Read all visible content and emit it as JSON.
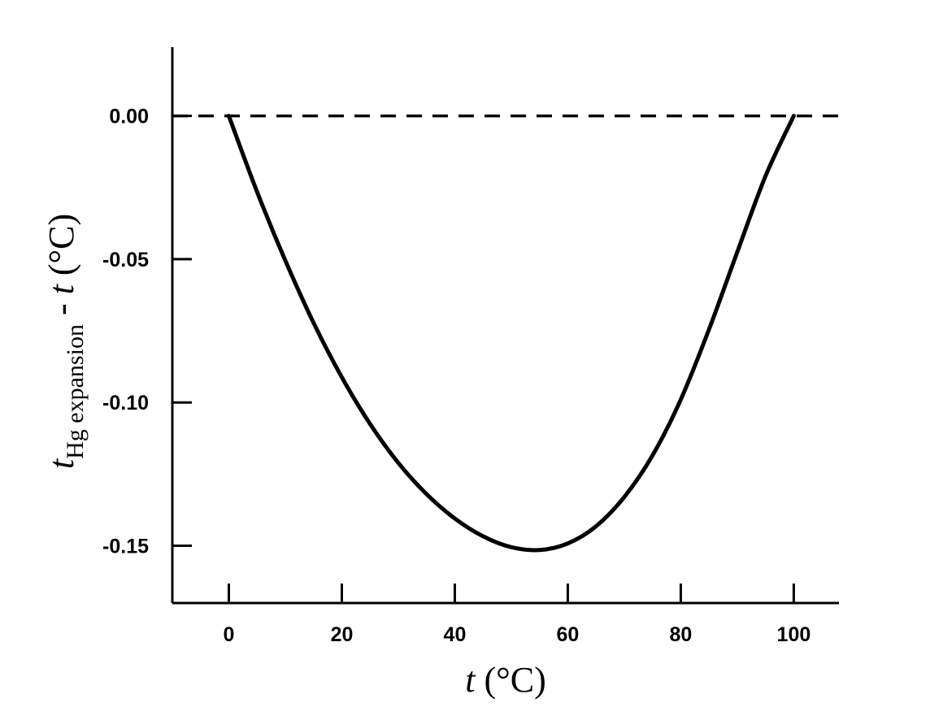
{
  "chart_data": {
    "type": "line",
    "title": "",
    "xlabel": {
      "variable": "t",
      "unit": " (°C)"
    },
    "ylabel": {
      "variable": "t",
      "subscript": "Hg expansion",
      "middle": " - ",
      "variable2": "t",
      "unit": " (°C)"
    },
    "xlim": [
      -10,
      108
    ],
    "ylim": [
      -0.17,
      0.024
    ],
    "x_ticks": [
      0,
      20,
      40,
      60,
      80,
      100
    ],
    "x_tick_labels": [
      "0",
      "20",
      "40",
      "60",
      "80",
      "100"
    ],
    "y_ticks": [
      0.0,
      -0.05,
      -0.1,
      -0.15
    ],
    "y_tick_labels": [
      "0.00",
      "-0.05",
      "-0.10",
      "-0.15"
    ],
    "grid": false,
    "reference_line": {
      "y": 0.0,
      "style": "dashed"
    },
    "series": [
      {
        "x": [
          0,
          5,
          10,
          15,
          20,
          25,
          30,
          35,
          40,
          45,
          50,
          55,
          60,
          65,
          70,
          75,
          80,
          85,
          90,
          95,
          100
        ],
        "y": [
          0.0,
          -0.0265,
          -0.0505,
          -0.0722,
          -0.0912,
          -0.1075,
          -0.1211,
          -0.132,
          -0.1405,
          -0.1467,
          -0.1505,
          -0.1515,
          -0.1492,
          -0.1432,
          -0.133,
          -0.1185,
          -0.099,
          -0.0745,
          -0.0475,
          -0.021,
          0.0
        ]
      }
    ],
    "colors": {
      "line": "#000000",
      "axis": "#000000"
    }
  }
}
